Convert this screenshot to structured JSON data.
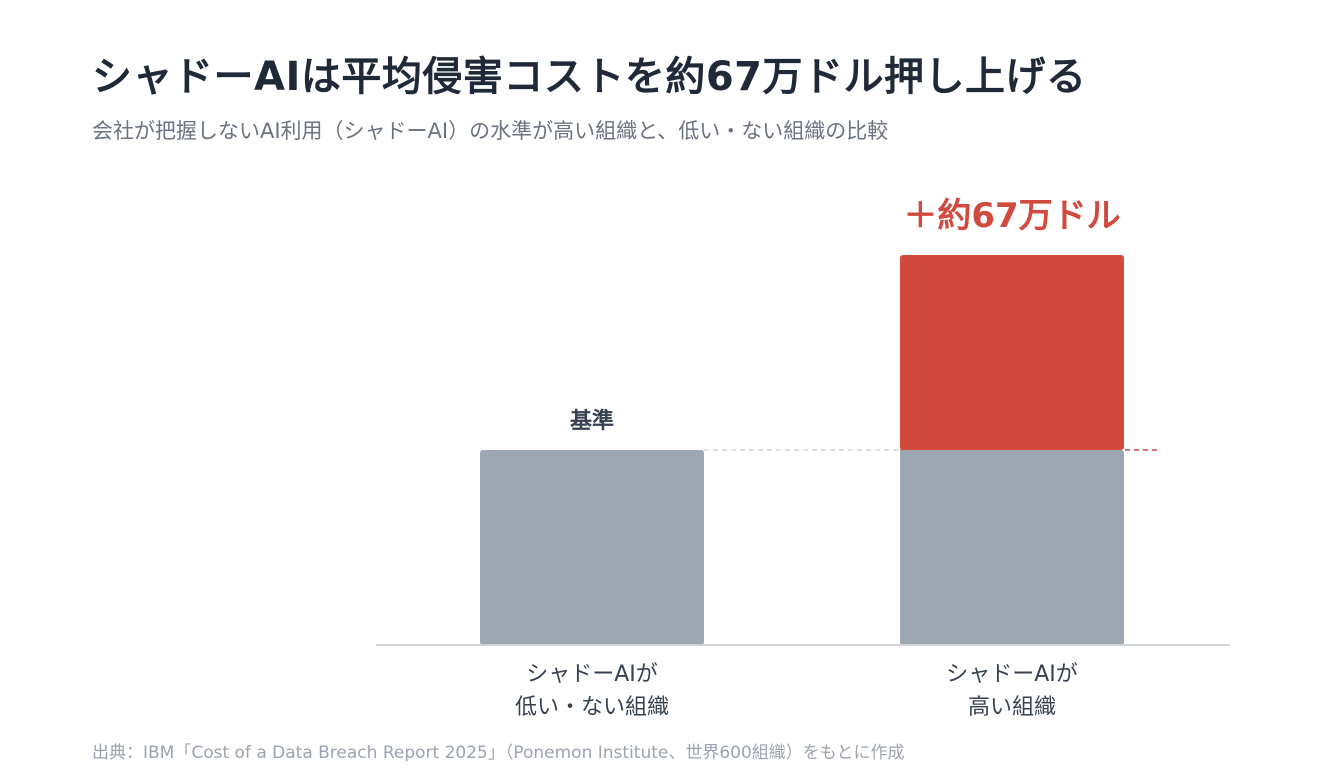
{
  "title": "シャドーAIは平均侵害コストを約67万ドル押し上げる",
  "subtitle": "会社が把握しないAI利用（シャドーAI）の水準が高い組織と、低い・ない組織の比較",
  "source": "出典：IBM「Cost of a Data Breach Report 2025」（Ponemon Institute、世界600組織）をもとに作成",
  "colors": {
    "base_bar": "#9ca7b2",
    "increase_bar": "#d24a3e",
    "axis": "#d1d5db",
    "baseline_label": "#374151",
    "increase_label": "#d24a3e",
    "category_label": "#374151"
  },
  "chart_data": {
    "type": "bar",
    "stacked": true,
    "categories": [
      [
        "シャドーAIが",
        "低い・ない組織"
      ],
      [
        "シャドーAIが",
        "高い組織"
      ]
    ],
    "series": [
      {
        "values": [
          1.0,
          1.0
        ],
        "color": "#9ca7b2"
      },
      {
        "values": [
          0,
          1.0
        ],
        "color": "#d24a3e"
      }
    ],
    "bar_labels": [
      {
        "category_index": 0,
        "text": "基準"
      },
      {
        "category_index": 1,
        "text": "＋約67万ドル"
      }
    ],
    "reference_line": {
      "value": 1.0,
      "style": "dashed"
    },
    "xlabel": "",
    "ylabel": "",
    "ylim": [
      0,
      2.0
    ],
    "grid": false,
    "legend": "none"
  }
}
